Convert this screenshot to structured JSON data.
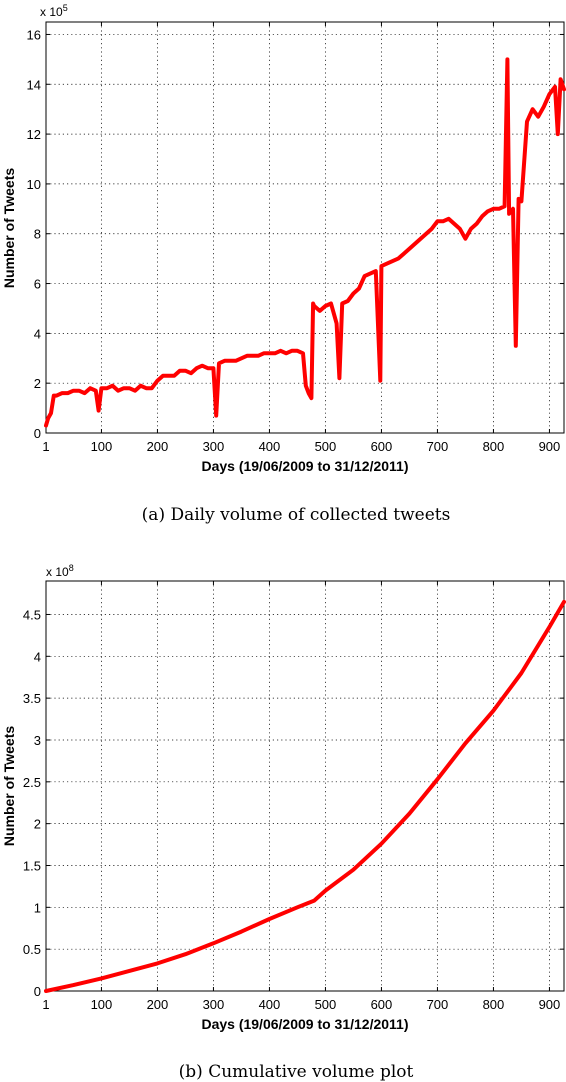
{
  "chart_data": [
    {
      "type": "line",
      "xlabel": "Days (19/06/2009 to 31/12/2011)",
      "ylabel": "Number of Tweets",
      "y_exponent_label": "x 10",
      "y_exponent_power": "5",
      "caption": "(a)  Daily volume of collected tweets",
      "xlim": [
        1,
        926
      ],
      "ylim": [
        0,
        16.5
      ],
      "xticks": [
        1,
        100,
        200,
        300,
        400,
        500,
        600,
        700,
        800,
        900
      ],
      "yticks": [
        0,
        2,
        4,
        6,
        8,
        10,
        12,
        14,
        16
      ],
      "grid": true,
      "line_color": "#ff0000",
      "series": [
        {
          "values_x": [
            1,
            5,
            10,
            15,
            20,
            30,
            40,
            50,
            60,
            70,
            80,
            90,
            95,
            100,
            110,
            120,
            130,
            140,
            150,
            160,
            170,
            180,
            190,
            200,
            210,
            220,
            230,
            240,
            250,
            260,
            270,
            280,
            290,
            300,
            305,
            310,
            320,
            330,
            340,
            350,
            360,
            370,
            380,
            390,
            400,
            410,
            420,
            430,
            440,
            450,
            460,
            465,
            470,
            475,
            478,
            480,
            490,
            500,
            510,
            520,
            525,
            530,
            540,
            550,
            560,
            570,
            580,
            590,
            598,
            600,
            610,
            620,
            630,
            640,
            650,
            660,
            670,
            680,
            690,
            700,
            710,
            720,
            730,
            740,
            750,
            760,
            770,
            780,
            790,
            800,
            810,
            820,
            825,
            828,
            835,
            840,
            845,
            850,
            860,
            870,
            880,
            890,
            900,
            910,
            915,
            920,
            926
          ],
          "values_y": [
            0.3,
            0.6,
            0.8,
            1.5,
            1.5,
            1.6,
            1.6,
            1.7,
            1.7,
            1.6,
            1.8,
            1.7,
            0.9,
            1.8,
            1.8,
            1.9,
            1.7,
            1.8,
            1.8,
            1.7,
            1.9,
            1.8,
            1.8,
            2.1,
            2.3,
            2.3,
            2.3,
            2.5,
            2.5,
            2.4,
            2.6,
            2.7,
            2.6,
            2.6,
            0.7,
            2.8,
            2.9,
            2.9,
            2.9,
            3.0,
            3.1,
            3.1,
            3.1,
            3.2,
            3.2,
            3.2,
            3.3,
            3.2,
            3.3,
            3.3,
            3.2,
            1.9,
            1.6,
            1.4,
            5.2,
            5.1,
            4.9,
            5.1,
            5.2,
            4.4,
            2.2,
            5.2,
            5.3,
            5.6,
            5.8,
            6.3,
            6.4,
            6.5,
            2.1,
            6.7,
            6.8,
            6.9,
            7.0,
            7.2,
            7.4,
            7.6,
            7.8,
            8.0,
            8.2,
            8.5,
            8.5,
            8.6,
            8.4,
            8.2,
            7.8,
            8.2,
            8.4,
            8.7,
            8.9,
            9.0,
            9.0,
            9.1,
            15.0,
            8.8,
            9.0,
            3.5,
            9.4,
            9.3,
            12.5,
            13.0,
            12.7,
            13.1,
            13.6,
            13.9,
            12.0,
            14.2,
            13.8
          ]
        }
      ]
    },
    {
      "type": "line",
      "xlabel": "Days (19/06/2009 to 31/12/2011)",
      "ylabel": "Number of Tweets",
      "y_exponent_label": "x 10",
      "y_exponent_power": "8",
      "caption": "(b)  Cumulative volume plot",
      "xlim": [
        1,
        926
      ],
      "ylim": [
        0,
        4.9
      ],
      "xticks": [
        1,
        100,
        200,
        300,
        400,
        500,
        600,
        700,
        800,
        900
      ],
      "yticks": [
        0,
        0.5,
        1,
        1.5,
        2,
        2.5,
        3,
        3.5,
        4,
        4.5
      ],
      "ytick_labels": [
        "0",
        "0.5",
        "1",
        "1.5",
        "2",
        "2.5",
        "3",
        "3.5",
        "4",
        "4.5"
      ],
      "grid": true,
      "line_color": "#ff0000",
      "series": [
        {
          "values_x": [
            1,
            50,
            100,
            150,
            200,
            250,
            300,
            350,
            400,
            450,
            480,
            500,
            550,
            600,
            650,
            700,
            750,
            800,
            850,
            900,
            926
          ],
          "values_y": [
            0.0,
            0.07,
            0.15,
            0.24,
            0.33,
            0.44,
            0.57,
            0.71,
            0.86,
            1.0,
            1.08,
            1.2,
            1.45,
            1.76,
            2.12,
            2.53,
            2.96,
            3.35,
            3.8,
            4.35,
            4.65
          ]
        }
      ]
    }
  ]
}
